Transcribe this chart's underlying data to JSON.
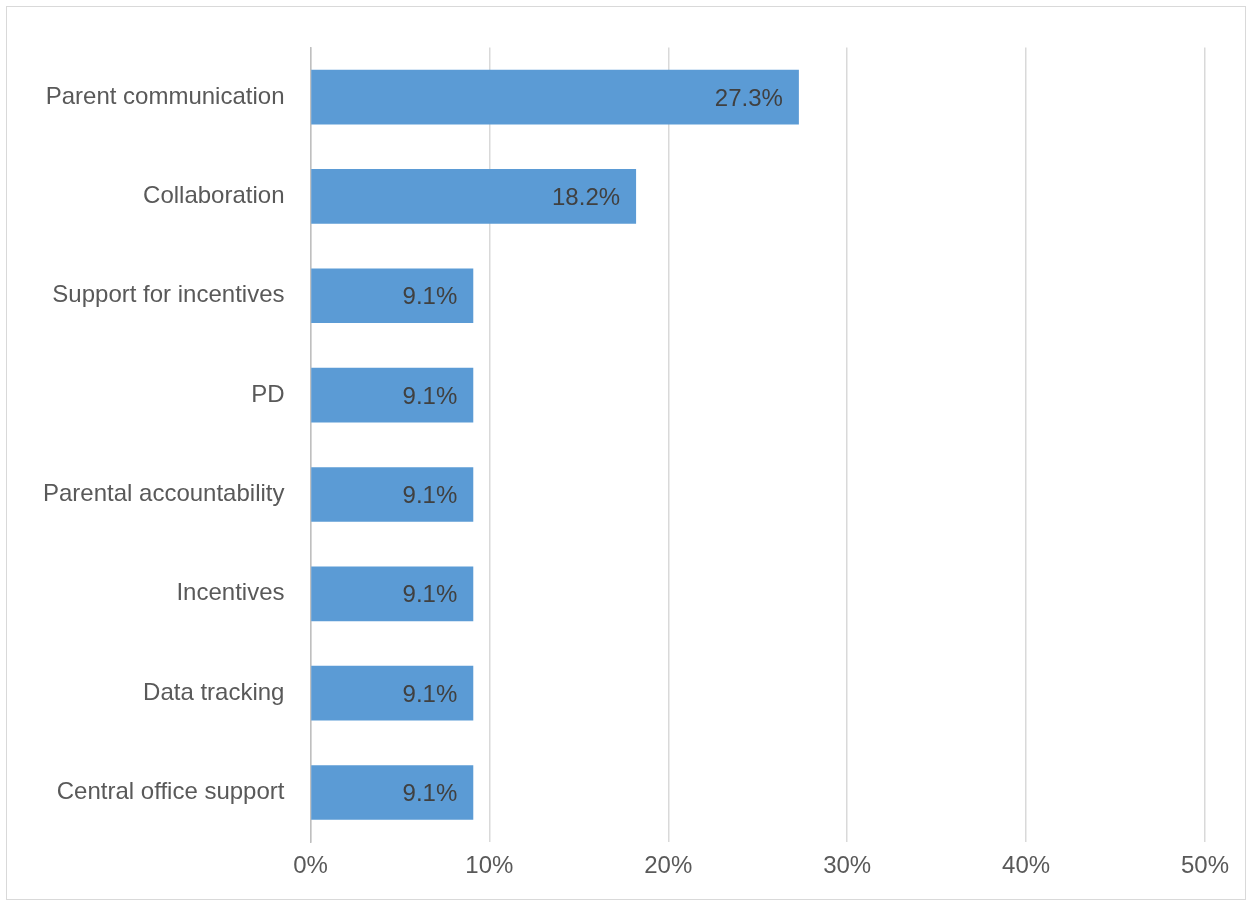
{
  "chart_data": {
    "type": "bar",
    "orientation": "horizontal",
    "categories": [
      "Parent communication",
      "Collaboration",
      "Support for incentives",
      "PD",
      "Parental accountability",
      "Incentives",
      "Data tracking",
      "Central office support"
    ],
    "values": [
      27.3,
      18.2,
      9.1,
      9.1,
      9.1,
      9.1,
      9.1,
      9.1
    ],
    "value_labels": [
      "27.3%",
      "18.2%",
      "9.1%",
      "9.1%",
      "9.1%",
      "9.1%",
      "9.1%",
      "9.1%"
    ],
    "color": "#5b9bd5",
    "xlim": [
      0,
      50
    ],
    "xticks": [
      {
        "value": 0,
        "label": "0%"
      },
      {
        "value": 10,
        "label": "10%"
      },
      {
        "value": 20,
        "label": "20%"
      },
      {
        "value": 30,
        "label": "30%"
      },
      {
        "value": 40,
        "label": "40%"
      },
      {
        "value": 50,
        "label": "50%"
      }
    ],
    "grid": "x",
    "legend": false
  }
}
